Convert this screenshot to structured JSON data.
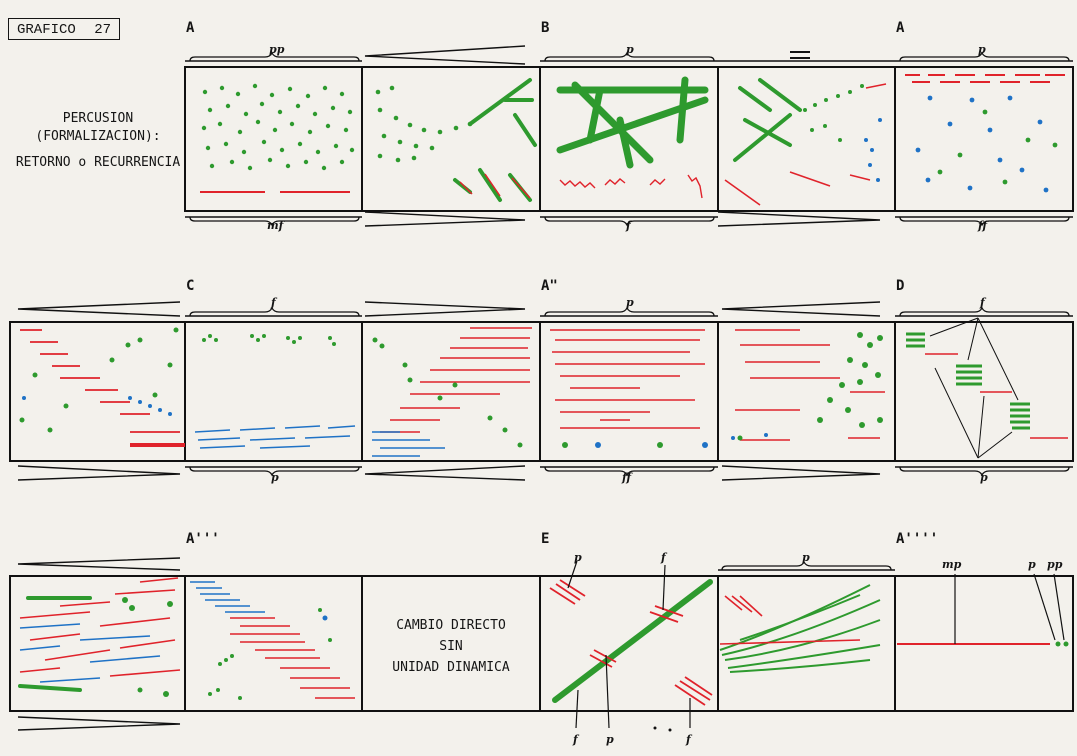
{
  "header": {
    "title_label": "GRAFICO",
    "title_number": "27",
    "subtitle_line1": "PERCUSION",
    "subtitle_line2": "(FORMALIZACION):",
    "subtitle_line3": "RETORNO o RECURRENCIA"
  },
  "sections": {
    "row1": [
      "A",
      "B",
      "A"
    ],
    "row2": [
      "C",
      "A\"",
      "D"
    ],
    "row3": [
      "A'''",
      "E",
      "A''''"
    ]
  },
  "dynamics": {
    "row1_top": [
      "pp",
      "p",
      "p"
    ],
    "row1_bottom": [
      "mf",
      "f",
      "ff"
    ],
    "row2_top": [
      "f",
      "p",
      "f"
    ],
    "row2_bottom": [
      "p",
      "ff",
      "p"
    ],
    "row3_e": [
      "p",
      "f",
      "f",
      "p",
      "f"
    ],
    "row3_cell5_top": "p",
    "row3_last": [
      "mp",
      "p",
      "pp"
    ]
  },
  "center_text": {
    "line1": "CAMBIO DIRECTO",
    "line2": "SIN",
    "line3": "UNIDAD DINAMICA"
  },
  "colors": {
    "red": "#e0232b",
    "green": "#2e9a2e",
    "blue": "#1f72c6",
    "ink": "#111111"
  }
}
